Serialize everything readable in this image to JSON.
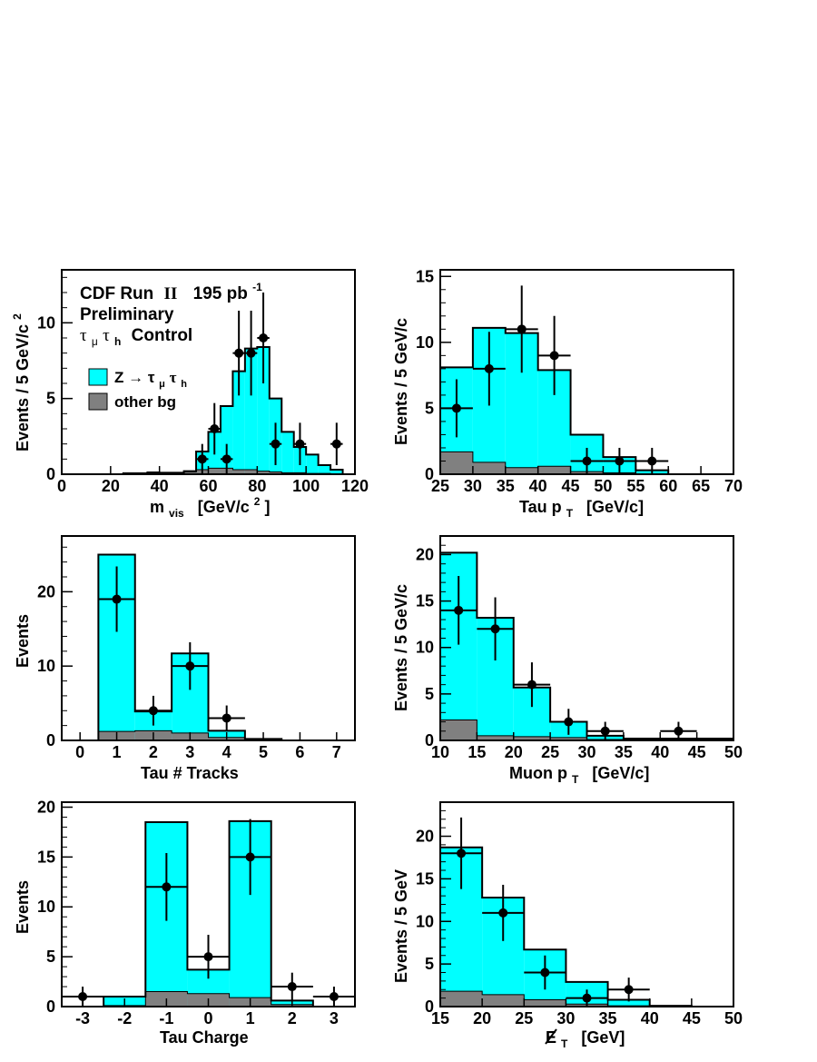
{
  "colors": {
    "signal": "#00ffff",
    "background": "#808080",
    "data": "#000000"
  },
  "chart_data": [
    {
      "type": "histogram",
      "xlabel": "m_vis  [GeV/c²]",
      "xlabel_main": "m",
      "xlabel_sub": "vis",
      "xlabel_unit": "[GeV/c",
      "xlabel_unit_sup": "2",
      "xlabel_unit_close": "]",
      "ylabel": "Events / 5 GeV/c²",
      "ylabel_main": "Events / 5 GeV/c",
      "ylabel_sup": "2",
      "xlim": [
        0,
        120
      ],
      "ylim": [
        0,
        13.5
      ],
      "x_ticks": [
        0,
        20,
        40,
        60,
        80,
        100,
        120
      ],
      "y_ticks": [
        0,
        5,
        10
      ],
      "bin_edges": [
        0,
        5,
        10,
        15,
        20,
        25,
        30,
        35,
        40,
        45,
        50,
        55,
        60,
        65,
        70,
        75,
        80,
        85,
        90,
        95,
        100,
        105,
        110,
        115,
        120
      ],
      "signal_values": [
        0,
        0,
        0,
        0,
        0,
        0,
        0,
        0.1,
        0.1,
        0.1,
        0.2,
        1.5,
        2.8,
        4.5,
        6.8,
        8.3,
        8.4,
        5.0,
        2.8,
        1.8,
        1.3,
        0.6,
        0.3,
        0
      ],
      "background_values": [
        0,
        0,
        0,
        0,
        0,
        0.1,
        0.1,
        0.15,
        0.1,
        0.1,
        0.15,
        0.3,
        0.4,
        0.4,
        0.3,
        0.3,
        0.2,
        0.15,
        0.1,
        0.1,
        0.05,
        0.05,
        0,
        0
      ],
      "data_points": [
        {
          "x": 57.5,
          "y": 1,
          "err": 1
        },
        {
          "x": 62.5,
          "y": 3,
          "err": 1.7
        },
        {
          "x": 67.5,
          "y": 1,
          "err": 1
        },
        {
          "x": 72.5,
          "y": 8,
          "err": 2.8
        },
        {
          "x": 77.5,
          "y": 8,
          "err": 2.8
        },
        {
          "x": 82.5,
          "y": 9,
          "err": 3
        },
        {
          "x": 87.5,
          "y": 2,
          "err": 1.4
        },
        {
          "x": 97.5,
          "y": 2,
          "err": 1.4
        },
        {
          "x": 112.5,
          "y": 2,
          "err": 1.4
        }
      ],
      "annotation": {
        "line1": "CDF Run",
        "line1_numeral": "II",
        "line1_lumi": "195 pb",
        "line1_lumi_sup": "-1",
        "line2": "Preliminary",
        "line3_tau1": "τ",
        "line3_sub1": "μ",
        "line3_tau2": "τ",
        "line3_sub2": "h",
        "line3_rest": "Control"
      },
      "legend": {
        "position": "upper-left",
        "signal_label": "Z → τ",
        "signal_sub1": "μ",
        "signal_tau2": "τ",
        "signal_sub2": "h",
        "background_label": "other bg"
      }
    },
    {
      "type": "histogram",
      "xlabel": "Tau p_T  [GeV/c]",
      "xlabel_main": "Tau p",
      "xlabel_sub": "T",
      "xlabel_unit": "[GeV/c]",
      "ylabel": "Events / 5 GeV/c",
      "xlim": [
        25,
        70
      ],
      "ylim": [
        0,
        15.5
      ],
      "x_ticks": [
        25,
        30,
        35,
        40,
        45,
        50,
        55,
        60,
        65,
        70
      ],
      "y_ticks": [
        0,
        5,
        10,
        15
      ],
      "bin_edges": [
        25,
        30,
        35,
        40,
        45,
        50,
        55,
        60,
        65,
        70
      ],
      "signal_values": [
        8.1,
        11.1,
        10.7,
        7.9,
        3.0,
        1.3,
        0.3,
        0,
        0
      ],
      "background_values": [
        1.7,
        0.9,
        0.5,
        0.6,
        0.2,
        0.1,
        0,
        0,
        0
      ],
      "data_points": [
        {
          "x": 27.5,
          "y": 5,
          "err": 2.2
        },
        {
          "x": 32.5,
          "y": 8,
          "err": 2.8
        },
        {
          "x": 37.5,
          "y": 11,
          "err": 3.3
        },
        {
          "x": 42.5,
          "y": 9,
          "err": 3
        },
        {
          "x": 47.5,
          "y": 1,
          "err": 1
        },
        {
          "x": 52.5,
          "y": 1,
          "err": 1
        },
        {
          "x": 57.5,
          "y": 1,
          "err": 1
        }
      ]
    },
    {
      "type": "histogram",
      "xlabel": "Tau # Tracks",
      "ylabel": "Events",
      "xlim": [
        -0.5,
        7.5
      ],
      "ylim": [
        0,
        27.5
      ],
      "x_ticks": [
        0,
        1,
        2,
        3,
        4,
        5,
        6,
        7
      ],
      "y_ticks": [
        0,
        10,
        20
      ],
      "bin_edges": [
        0.5,
        1.5,
        2.5,
        3.5,
        4.5,
        5.5
      ],
      "signal_values": [
        25.0,
        3.9,
        11.7,
        1.3,
        0.2
      ],
      "background_values": [
        1.2,
        1.3,
        1.0,
        0.4,
        0.1
      ],
      "data_points": [
        {
          "x": 1,
          "y": 19,
          "err": 4.4
        },
        {
          "x": 2,
          "y": 4,
          "err": 2
        },
        {
          "x": 3,
          "y": 10,
          "err": 3.2
        },
        {
          "x": 4,
          "y": 3,
          "err": 1.7
        }
      ]
    },
    {
      "type": "histogram",
      "xlabel": "Muon p_T  [GeV/c]",
      "xlabel_main": "Muon p",
      "xlabel_sub": "T",
      "xlabel_unit": "[GeV/c]",
      "ylabel": "Events / 5 GeV/c",
      "xlim": [
        10,
        50
      ],
      "ylim": [
        0,
        22
      ],
      "x_ticks": [
        10,
        15,
        20,
        25,
        30,
        35,
        40,
        45,
        50
      ],
      "y_ticks": [
        0,
        5,
        10,
        15,
        20
      ],
      "bin_edges": [
        10,
        15,
        20,
        25,
        30,
        35,
        40,
        45,
        50
      ],
      "signal_values": [
        20.2,
        13.2,
        5.7,
        2.0,
        0.5,
        0.2,
        0.2,
        0.2
      ],
      "background_values": [
        2.2,
        0.5,
        0.4,
        0.3,
        0.1,
        0,
        0,
        0
      ],
      "data_points": [
        {
          "x": 12.5,
          "y": 14,
          "err": 3.7
        },
        {
          "x": 17.5,
          "y": 12,
          "err": 3.4
        },
        {
          "x": 22.5,
          "y": 6,
          "err": 2.4
        },
        {
          "x": 27.5,
          "y": 2,
          "err": 1.4
        },
        {
          "x": 32.5,
          "y": 1,
          "err": 1
        },
        {
          "x": 42.5,
          "y": 1,
          "err": 1
        }
      ]
    },
    {
      "type": "histogram",
      "xlabel": "Tau Charge",
      "ylabel": "Events",
      "xlim": [
        -3.5,
        3.5
      ],
      "ylim": [
        0,
        20.5
      ],
      "x_ticks": [
        -3,
        -2,
        -1,
        0,
        1,
        2,
        3
      ],
      "y_ticks": [
        0,
        5,
        10,
        15,
        20
      ],
      "bin_edges": [
        -3.5,
        -2.5,
        -1.5,
        -0.5,
        0.5,
        1.5,
        2.5,
        3.5
      ],
      "signal_values": [
        0,
        1.0,
        18.5,
        3.7,
        18.6,
        0.6,
        0
      ],
      "background_values": [
        0,
        0.1,
        1.5,
        1.3,
        0.9,
        0.2,
        0
      ],
      "data_points": [
        {
          "x": -3,
          "y": 1,
          "err": 1
        },
        {
          "x": -1,
          "y": 12,
          "err": 3.4
        },
        {
          "x": 0,
          "y": 5,
          "err": 2.2
        },
        {
          "x": 1,
          "y": 15,
          "err": 3.8
        },
        {
          "x": 2,
          "y": 2,
          "err": 1.4
        },
        {
          "x": 3,
          "y": 1,
          "err": 1
        }
      ]
    },
    {
      "type": "histogram",
      "xlabel": "E̸_T  [GeV]",
      "xlabel_main": "E",
      "xlabel_sub": "T",
      "xlabel_unit": "[GeV]",
      "ylabel": "Events / 5 GeV",
      "xlim": [
        15,
        50
      ],
      "ylim": [
        0,
        24
      ],
      "x_ticks": [
        15,
        20,
        25,
        30,
        35,
        40,
        45,
        50
      ],
      "y_ticks": [
        0,
        5,
        10,
        15,
        20
      ],
      "bin_edges": [
        15,
        20,
        25,
        30,
        35,
        40,
        45,
        50
      ],
      "signal_values": [
        18.7,
        12.8,
        6.7,
        2.9,
        0.8,
        0.1,
        0
      ],
      "background_values": [
        1.8,
        1.4,
        0.8,
        0.3,
        0.1,
        0,
        0
      ],
      "data_points": [
        {
          "x": 17.5,
          "y": 18,
          "err": 4.2
        },
        {
          "x": 22.5,
          "y": 11,
          "err": 3.3
        },
        {
          "x": 27.5,
          "y": 4,
          "err": 2
        },
        {
          "x": 32.5,
          "y": 1,
          "err": 1
        },
        {
          "x": 37.5,
          "y": 2,
          "err": 1.4
        }
      ]
    }
  ]
}
